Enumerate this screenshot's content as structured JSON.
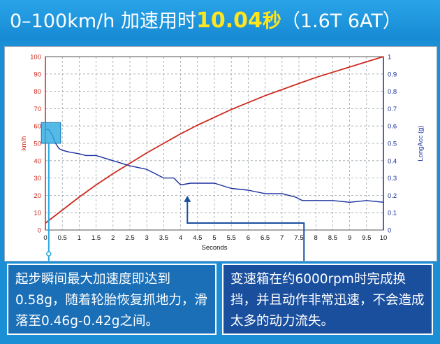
{
  "header": {
    "title_part1": "0–100km/h",
    "title_part2": " 加速用时",
    "time_value": "10.04",
    "time_unit": "秒",
    "title_part3": "（1.6T 6AT）"
  },
  "colors": {
    "speed_line": "#cc2a1e",
    "accel_line": "#1a2f9e",
    "grid": "#9aa3aa",
    "highlight_box": "#2aa9e0",
    "left_box_bg": "#1a6fb7",
    "right_box_bg": "#1a4f9e"
  },
  "chart_data": {
    "type": "line",
    "xlabel": "Seconds",
    "ylabel_left": "km/h",
    "ylabel_right": "LongAcc (g)",
    "xlim": [
      0,
      10
    ],
    "ylim_left": [
      0,
      100
    ],
    "ylim_right": [
      0,
      1
    ],
    "x_ticks": [
      "0",
      "0.5",
      "1",
      "1.5",
      "2",
      "2.5",
      "3",
      "3.5",
      "4",
      "4.5",
      "5",
      "5.5",
      "6",
      "6.5",
      "7",
      "7.5",
      "8",
      "8.5",
      "9",
      "9.5",
      "10"
    ],
    "y_ticks_left": [
      "0",
      "10",
      "20",
      "30",
      "40",
      "50",
      "60",
      "70",
      "80",
      "90",
      "100"
    ],
    "y_ticks_right": [
      "0",
      "0.1",
      "0.2",
      "0.3",
      "0.4",
      "0.5",
      "0.6",
      "0.7",
      "0.8",
      "0.9",
      "1"
    ],
    "grid": true,
    "series": [
      {
        "name": "km/h",
        "axis": "left",
        "x": [
          0,
          0.5,
          1,
          1.5,
          2,
          2.5,
          3,
          3.5,
          4,
          4.5,
          5,
          5.5,
          6,
          6.5,
          7,
          7.5,
          8,
          8.5,
          9,
          9.5,
          10
        ],
        "values": [
          4,
          11.5,
          19,
          26,
          32.5,
          38.5,
          44.5,
          50,
          55.5,
          60.5,
          65,
          69.5,
          73.5,
          77.5,
          81,
          84.5,
          88,
          91,
          94,
          97,
          100
        ]
      },
      {
        "name": "LongAcc (g)",
        "axis": "right",
        "x": [
          0,
          0.1,
          0.2,
          0.3,
          0.4,
          0.5,
          0.7,
          1,
          1.2,
          1.5,
          2,
          2.5,
          3,
          3.5,
          3.8,
          4,
          4.3,
          4.6,
          5,
          5.5,
          6,
          6.5,
          7,
          7.4,
          7.6,
          8,
          8.5,
          9,
          9.5,
          10
        ],
        "values": [
          0.58,
          0.58,
          0.55,
          0.5,
          0.47,
          0.46,
          0.45,
          0.44,
          0.43,
          0.43,
          0.4,
          0.37,
          0.35,
          0.3,
          0.3,
          0.26,
          0.27,
          0.27,
          0.27,
          0.24,
          0.23,
          0.21,
          0.21,
          0.19,
          0.17,
          0.17,
          0.17,
          0.16,
          0.17,
          0.16
        ]
      }
    ]
  },
  "annotations": {
    "left_text": "起步瞬间最大加速度即达到0.58g，随着轮胎恢复抓地力，滑落至0.46g-0.42g之间。",
    "right_text": "变速箱在约6000rpm时完成换挡，并且动作非常迅速，不会造成太多的动力流失。"
  }
}
